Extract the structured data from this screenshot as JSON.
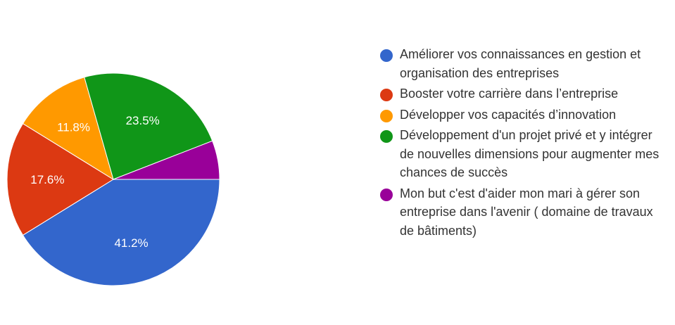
{
  "chart_data": {
    "type": "pie",
    "title": "",
    "categories": [
      "Améliorer vos connaissances en gestion et organisation des entreprises",
      "Booster votre carrière dans l’entreprise",
      "Développer vos capacités d’innovation",
      "Développement d'un projet privé et y intégrer de nouvelles dimensions pour augmenter mes chances de succès",
      "Mon but c'est d'aider mon mari à gérer son entreprise dans l'avenir ( domaine de travaux de bâtiments)"
    ],
    "values": [
      41.2,
      17.6,
      11.8,
      23.5,
      5.9
    ],
    "data_labels": [
      "41.2%",
      "17.6%",
      "11.8%",
      "23.5%",
      ""
    ],
    "colors": [
      "#3366cc",
      "#dc3912",
      "#ff9900",
      "#109618",
      "#990099"
    ],
    "legend_position": "right"
  }
}
